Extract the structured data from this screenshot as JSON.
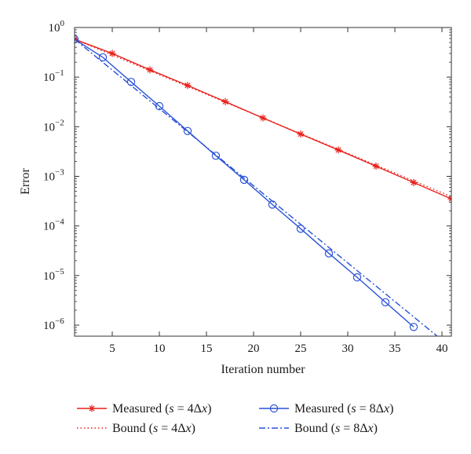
{
  "chart_data": {
    "type": "line",
    "title": "",
    "xlabel": "Iteration number",
    "ylabel": "Error",
    "xlim": [
      1,
      41
    ],
    "ylim": [
      6e-07,
      1
    ],
    "yscale": "log",
    "grid": false,
    "legend_position": "bottom",
    "x_ticks": [
      5,
      10,
      15,
      20,
      25,
      30,
      35,
      40
    ],
    "y_ticks": [
      {
        "value": 1,
        "base": "10",
        "exp": "0"
      },
      {
        "value": 0.1,
        "base": "10",
        "exp": "−1"
      },
      {
        "value": 0.01,
        "base": "10",
        "exp": "−2"
      },
      {
        "value": 0.001,
        "base": "10",
        "exp": "−3"
      },
      {
        "value": 0.0001,
        "base": "10",
        "exp": "−4"
      },
      {
        "value": 1e-05,
        "base": "10",
        "exp": "−5"
      },
      {
        "value": 1e-06,
        "base": "10",
        "exp": "−6"
      }
    ],
    "series": [
      {
        "name": "Measured (s = 4Δx)",
        "legend": {
          "prefix": "Measured (",
          "var": "s",
          "mid": " = 4Δ",
          "var2": "x",
          "suffix": ")"
        },
        "style": "solid",
        "marker": "star",
        "color": "#e8201a",
        "x": [
          1,
          5,
          9,
          13,
          17,
          21,
          25,
          29,
          33,
          37,
          41
        ],
        "y": [
          0.58,
          0.3,
          0.14,
          0.068,
          0.032,
          0.015,
          0.0071,
          0.0034,
          0.0016,
          0.00075,
          0.00035
        ]
      },
      {
        "name": "Bound (s = 4Δx)",
        "legend": {
          "prefix": "Bound (",
          "var": "s",
          "mid": " = 4Δ",
          "var2": "x",
          "suffix": ")"
        },
        "style": "dotted",
        "marker": "none",
        "color": "#e8201a",
        "x": [
          1,
          41
        ],
        "y": [
          0.58,
          0.00039
        ]
      },
      {
        "name": "Measured (s = 8Δx)",
        "legend": {
          "prefix": "Measured (",
          "var": "s",
          "mid": " = 8Δ",
          "var2": "x",
          "suffix": ")"
        },
        "style": "solid",
        "marker": "circle",
        "color": "#2a52d8",
        "x": [
          1,
          4,
          7,
          10,
          13,
          16,
          19,
          22,
          25,
          28,
          31,
          34,
          37
        ],
        "y": [
          0.58,
          0.25,
          0.08,
          0.026,
          0.0082,
          0.0026,
          0.00085,
          0.00027,
          8.8e-05,
          2.8e-05,
          9.2e-06,
          2.9e-06,
          9.2e-07
        ]
      },
      {
        "name": "Bound (s = 8Δx)",
        "legend": {
          "prefix": "Bound (",
          "var": "s",
          "mid": " = 8Δ",
          "var2": "x",
          "suffix": ")"
        },
        "style": "dashdot",
        "marker": "none",
        "color": "#2a52d8",
        "x": [
          1,
          39.5
        ],
        "y": [
          0.58,
          6e-07
        ]
      }
    ]
  }
}
